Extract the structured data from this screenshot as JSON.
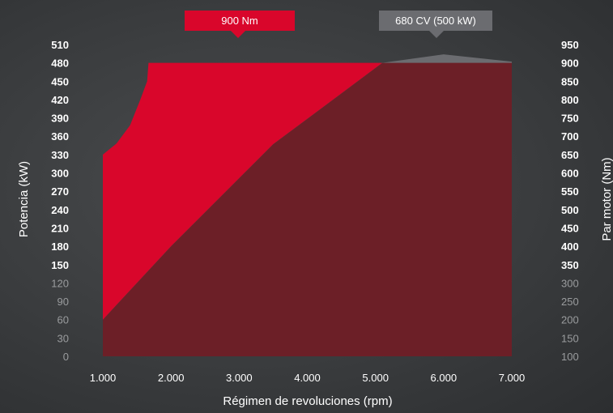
{
  "colors": {
    "torque_fill": "#d9062b",
    "power_fill": "#6c1f27",
    "power_upper_fill": "#6b6c70",
    "bold_tick": "#ffffff",
    "dim_tick": "#9a9c9e"
  },
  "callouts": {
    "torque": "900 Nm",
    "power": "680 CV (500 kW)"
  },
  "chart_data": {
    "type": "area",
    "xlabel": "Régimen de revoluciones (rpm)",
    "ylabel_left": "Potencia (kW)",
    "ylabel_right": "Par motor (Nm)",
    "xlim": [
      1000,
      7000
    ],
    "ylim_left": [
      0,
      510
    ],
    "ylim_right": [
      100,
      950
    ],
    "x_ticks": [
      {
        "v": 1000,
        "label": "1.000"
      },
      {
        "v": 2000,
        "label": "2.000"
      },
      {
        "v": 3000,
        "label": "3.000"
      },
      {
        "v": 4000,
        "label": "4.000"
      },
      {
        "v": 5000,
        "label": "5.000"
      },
      {
        "v": 6000,
        "label": "6.000"
      },
      {
        "v": 7000,
        "label": "7.000"
      }
    ],
    "left_ticks": [
      {
        "v": 0,
        "label": "0",
        "bold": false
      },
      {
        "v": 30,
        "label": "30",
        "bold": false
      },
      {
        "v": 60,
        "label": "60",
        "bold": false
      },
      {
        "v": 90,
        "label": "90",
        "bold": false
      },
      {
        "v": 120,
        "label": "120",
        "bold": false
      },
      {
        "v": 150,
        "label": "150",
        "bold": true
      },
      {
        "v": 180,
        "label": "180",
        "bold": true
      },
      {
        "v": 210,
        "label": "210",
        "bold": true
      },
      {
        "v": 240,
        "label": "240",
        "bold": true
      },
      {
        "v": 270,
        "label": "270",
        "bold": true
      },
      {
        "v": 300,
        "label": "300",
        "bold": true
      },
      {
        "v": 330,
        "label": "330",
        "bold": true
      },
      {
        "v": 360,
        "label": "360",
        "bold": true
      },
      {
        "v": 390,
        "label": "390",
        "bold": true
      },
      {
        "v": 420,
        "label": "420",
        "bold": true
      },
      {
        "v": 450,
        "label": "450",
        "bold": true
      },
      {
        "v": 480,
        "label": "480",
        "bold": true
      },
      {
        "v": 510,
        "label": "510",
        "bold": true
      }
    ],
    "right_ticks": [
      {
        "v": 100,
        "label": "100",
        "bold": false
      },
      {
        "v": 150,
        "label": "150",
        "bold": false
      },
      {
        "v": 200,
        "label": "200",
        "bold": false
      },
      {
        "v": 250,
        "label": "250",
        "bold": false
      },
      {
        "v": 300,
        "label": "300",
        "bold": false
      },
      {
        "v": 350,
        "label": "350",
        "bold": true
      },
      {
        "v": 400,
        "label": "400",
        "bold": true
      },
      {
        "v": 450,
        "label": "450",
        "bold": true
      },
      {
        "v": 500,
        "label": "500",
        "bold": true
      },
      {
        "v": 550,
        "label": "550",
        "bold": true
      },
      {
        "v": 600,
        "label": "600",
        "bold": true
      },
      {
        "v": 650,
        "label": "650",
        "bold": true
      },
      {
        "v": 700,
        "label": "700",
        "bold": true
      },
      {
        "v": 750,
        "label": "750",
        "bold": true
      },
      {
        "v": 800,
        "label": "800",
        "bold": true
      },
      {
        "v": 850,
        "label": "850",
        "bold": true
      },
      {
        "v": 900,
        "label": "900",
        "bold": true
      },
      {
        "v": 950,
        "label": "950",
        "bold": true
      }
    ],
    "series": [
      {
        "name": "Par motor (Nm)",
        "axis": "right",
        "points": [
          [
            1000,
            650
          ],
          [
            1200,
            680
          ],
          [
            1400,
            730
          ],
          [
            1550,
            800
          ],
          [
            1650,
            850
          ],
          [
            1670,
            900
          ],
          [
            5150,
            900
          ],
          [
            6000,
            900
          ],
          [
            7000,
            900
          ]
        ]
      },
      {
        "name": "Potencia (kW)",
        "axis": "left",
        "points": [
          [
            1000,
            60
          ],
          [
            2000,
            180
          ],
          [
            3500,
            347
          ],
          [
            4500,
            430
          ],
          [
            5100,
            480
          ],
          [
            6000,
            494
          ],
          [
            7000,
            482
          ]
        ]
      }
    ],
    "grid": false
  }
}
